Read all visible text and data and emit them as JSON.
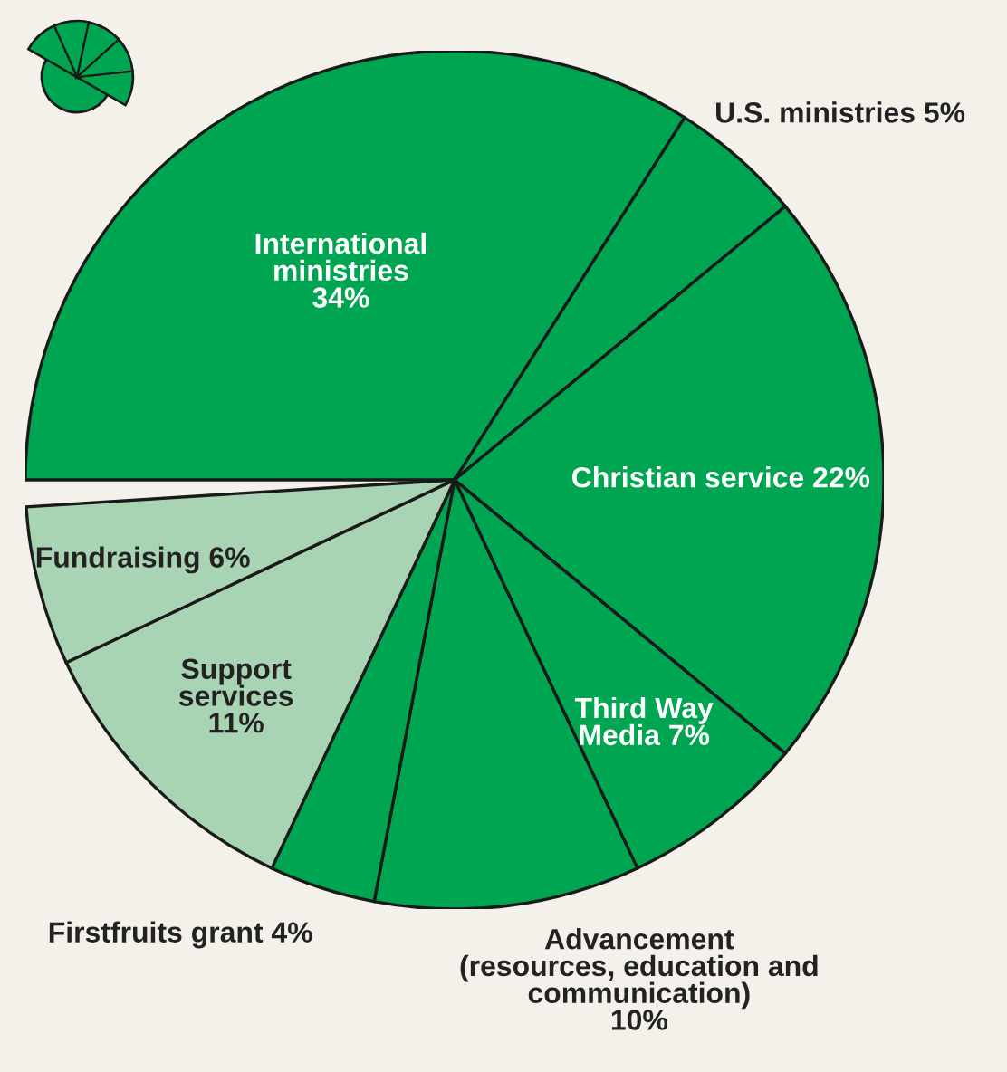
{
  "chart_data": {
    "type": "pie",
    "categories": [
      "International\nministries",
      "U.S. ministries",
      "Christian service",
      "Third Way\nMedia",
      "Advancement\n(resources, education and\ncommunication)",
      "Firstfruits grant",
      "Support\nservices",
      "Fundraising"
    ],
    "values": [
      34,
      5,
      22,
      7,
      10,
      4,
      11,
      6
    ],
    "value_labels": [
      "34%",
      "5%",
      "22%",
      "7%",
      "10%",
      "4%",
      "11%",
      "6%"
    ],
    "colors": [
      "#00a551",
      "#00a551",
      "#00a551",
      "#00a551",
      "#00a551",
      "#00a551",
      "#a9d4b4",
      "#a9d4b4"
    ],
    "legend": false
  }
}
